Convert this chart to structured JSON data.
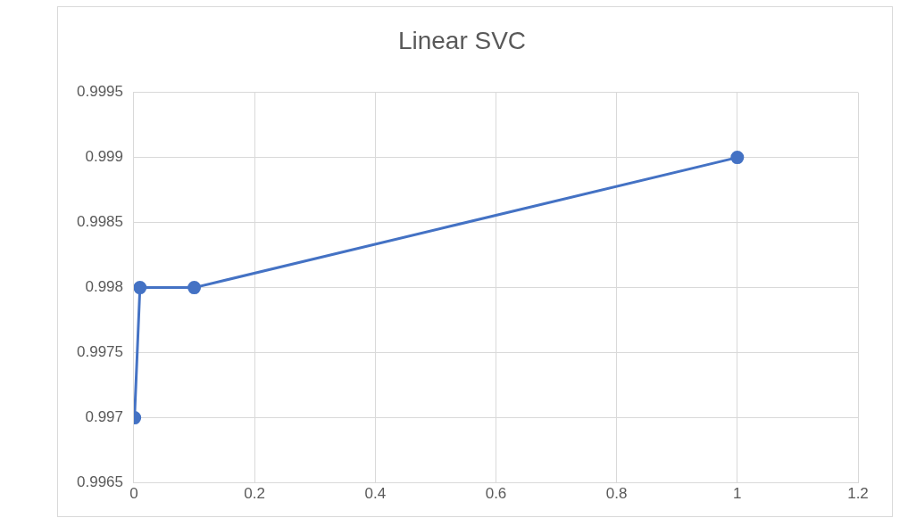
{
  "chart_data": {
    "type": "line",
    "title": "Linear SVC",
    "x": [
      0.001,
      0.01,
      0.1,
      1
    ],
    "series": [
      {
        "color": "#4472c4",
        "values": [
          0.997,
          0.998,
          0.998,
          0.999
        ]
      }
    ],
    "xlim": [
      0,
      1.2
    ],
    "xticks": [
      0,
      0.2,
      0.4,
      0.6,
      0.8,
      1,
      1.2
    ],
    "ylim": [
      0.9965,
      0.9995
    ],
    "yticks": [
      0.9965,
      0.997,
      0.9975,
      0.998,
      0.9985,
      0.999,
      0.9995
    ],
    "grid": true,
    "legend": false,
    "marker": "circle",
    "line_style": "solid"
  }
}
